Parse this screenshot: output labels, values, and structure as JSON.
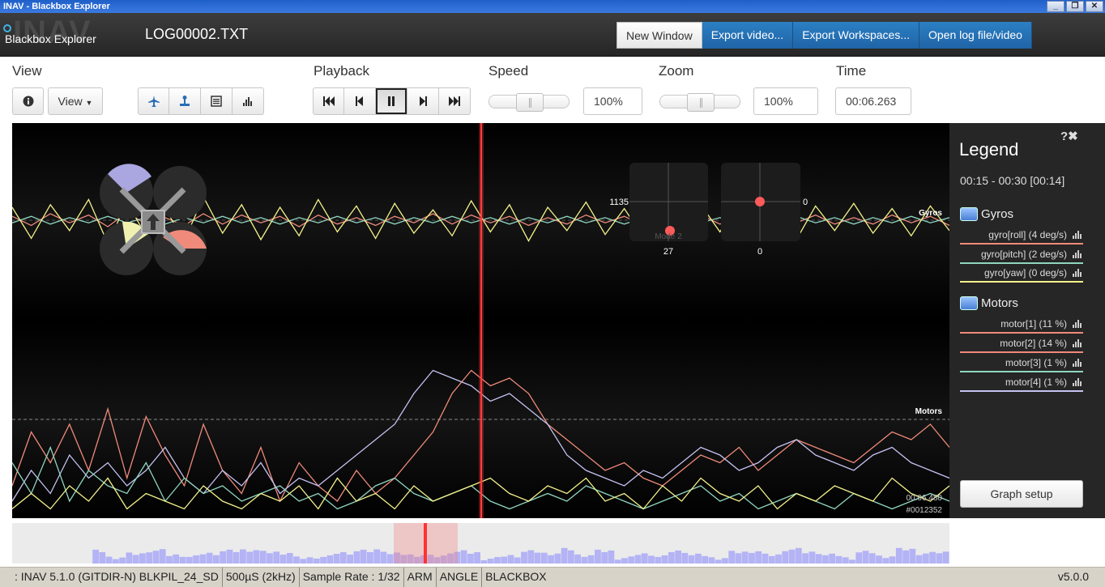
{
  "window": {
    "title": "INAV - Blackbox Explorer",
    "controls": [
      "_",
      "❐",
      "✕"
    ]
  },
  "header": {
    "logo_brand": "INAV",
    "logo_text": "Blackbox Explorer",
    "filename": "LOG00002.TXT",
    "buttons": {
      "new_window": "New Window",
      "export_video": "Export video...",
      "export_workspaces": "Export Workspaces...",
      "open_log": "Open log file/video"
    }
  },
  "toolbar": {
    "view_label": "View",
    "view_dropdown": "View",
    "playback_label": "Playback",
    "speed_label": "Speed",
    "speed_value": "100%",
    "zoom_label": "Zoom",
    "zoom_value": "100%",
    "time_label": "Time",
    "time_value": "00:06.263"
  },
  "graph": {
    "gyros_label": "Gyros",
    "motors_label": "Motors",
    "stick_left_top": "1135",
    "stick_left_bottom": "27",
    "stick_right_top": "0",
    "stick_right_bottom": "0",
    "mode_label": "Mode 2",
    "time_overlay": "00:06.480",
    "frame_overlay": "#0012352"
  },
  "legend": {
    "title": "Legend",
    "tools": "?✖",
    "range": "00:15 - 00:30 [00:14]",
    "groups": [
      {
        "name": "Gyros",
        "items": [
          {
            "label": "gyro[roll] (4 deg/s)",
            "color": "#f08a7a"
          },
          {
            "label": "gyro[pitch] (2 deg/s)",
            "color": "#8ed6c0"
          },
          {
            "label": "gyro[yaw] (0 deg/s)",
            "color": "#f4f28a"
          }
        ]
      },
      {
        "name": "Motors",
        "items": [
          {
            "label": "motor[1] (11 %)",
            "color": "#f08a7a"
          },
          {
            "label": "motor[2] (14 %)",
            "color": "#f08a7a"
          },
          {
            "label": "motor[3] (1 %)",
            "color": "#8ed6c0"
          },
          {
            "label": "motor[4] (1 %)",
            "color": "#c5c2f2"
          }
        ]
      }
    ],
    "graph_setup": "Graph setup"
  },
  "statusbar": {
    "firmware": ": INAV 5.1.0 (GITDIR-N) BLKPIL_24_SD",
    "looptime": "500µS (2kHz)",
    "sample_rate": "Sample Rate : 1/32",
    "arm": "ARM",
    "angle": "ANGLE",
    "blackbox": "BLACKBOX",
    "version": "v5.0.0"
  },
  "chart_data": {
    "type": "line",
    "title": "",
    "x_range_label": "00:15 - 00:30 [00:14]",
    "panels": [
      {
        "name": "Gyros",
        "series": [
          {
            "name": "gyro[roll]",
            "color": "#f08a7a",
            "values": [
              3,
              -4,
              5,
              -2,
              4,
              -5,
              6,
              -3,
              2,
              -4,
              5,
              -3,
              4,
              -2,
              3,
              -5,
              4,
              -3,
              2,
              -4,
              3,
              -2,
              5,
              -3,
              4,
              -2,
              3,
              -4,
              2,
              -3,
              4,
              -2,
              3,
              -4,
              5,
              -2,
              4,
              -3,
              2,
              -4,
              3,
              -2,
              4,
              -3,
              2,
              -3,
              4,
              -2,
              3,
              -4
            ]
          },
          {
            "name": "gyro[pitch]",
            "color": "#8ed6c0",
            "values": [
              -2,
              3,
              -3,
              2,
              -2,
              3,
              -2,
              2,
              -3,
              2,
              -2,
              3,
              -2,
              2,
              -3,
              2,
              -2,
              3,
              -2,
              2,
              -3,
              2,
              -2,
              3,
              -2,
              2,
              -3,
              2,
              -2,
              3,
              -2,
              2,
              -3,
              2,
              -2,
              3,
              -2,
              2,
              -3,
              2,
              -2,
              3,
              -2,
              2,
              -3,
              2,
              -2,
              3,
              -2,
              2
            ]
          },
          {
            "name": "gyro[yaw]",
            "color": "#f4f28a",
            "values": [
              10,
              -14,
              12,
              -8,
              16,
              -18,
              14,
              -12,
              9,
              -16,
              18,
              -10,
              12,
              -15,
              10,
              -12,
              16,
              -9,
              11,
              -14,
              13,
              -10,
              8,
              -12,
              15,
              -9,
              12,
              -16,
              10,
              -8,
              14,
              -11,
              9,
              -13,
              16,
              -10,
              12,
              -9,
              14,
              -12,
              10,
              -15,
              11,
              -8,
              13,
              -10,
              9,
              -12,
              11,
              -8
            ]
          }
        ]
      },
      {
        "name": "Motors",
        "series": [
          {
            "name": "motor[1]",
            "color": "#f08a7a",
            "values": [
              20,
              55,
              35,
              60,
              30,
              70,
              25,
              65,
              40,
              20,
              60,
              30,
              15,
              45,
              10,
              35,
              20,
              10,
              30,
              15,
              25,
              40,
              55,
              80,
              95,
              85,
              90,
              80,
              60,
              50,
              40,
              30,
              35,
              25,
              20,
              30,
              40,
              35,
              45,
              30,
              40,
              50,
              45,
              40,
              35,
              45,
              55,
              50,
              60,
              45
            ]
          },
          {
            "name": "motor[2]",
            "color": "#c5c2f2",
            "values": [
              10,
              30,
              15,
              40,
              25,
              35,
              20,
              30,
              45,
              25,
              15,
              30,
              20,
              35,
              15,
              25,
              20,
              30,
              40,
              50,
              60,
              80,
              95,
              90,
              85,
              75,
              80,
              70,
              60,
              40,
              30,
              25,
              20,
              30,
              25,
              35,
              45,
              40,
              30,
              35,
              45,
              50,
              40,
              35,
              30,
              40,
              45,
              35,
              30,
              25
            ]
          },
          {
            "name": "motor[3]",
            "color": "#8ed6c0",
            "values": [
              35,
              15,
              45,
              10,
              30,
              20,
              15,
              35,
              10,
              25,
              15,
              20,
              10,
              15,
              20,
              10,
              15,
              5,
              10,
              20,
              25,
              15,
              10,
              15,
              20,
              10,
              5,
              10,
              15,
              10,
              20,
              15,
              10,
              5,
              10,
              15,
              20,
              10,
              15,
              5,
              10,
              15,
              10,
              5,
              15,
              10,
              5,
              10,
              15,
              10
            ]
          },
          {
            "name": "motor[4]",
            "color": "#f4f28a",
            "values": [
              5,
              15,
              5,
              20,
              10,
              25,
              5,
              15,
              10,
              5,
              20,
              10,
              5,
              15,
              10,
              20,
              5,
              25,
              10,
              15,
              5,
              20,
              10,
              15,
              20,
              25,
              15,
              10,
              20,
              15,
              25,
              10,
              15,
              5,
              20,
              10,
              25,
              15,
              10,
              20,
              5,
              15,
              10,
              20,
              15,
              10,
              25,
              15,
              10,
              20
            ]
          }
        ]
      }
    ]
  }
}
